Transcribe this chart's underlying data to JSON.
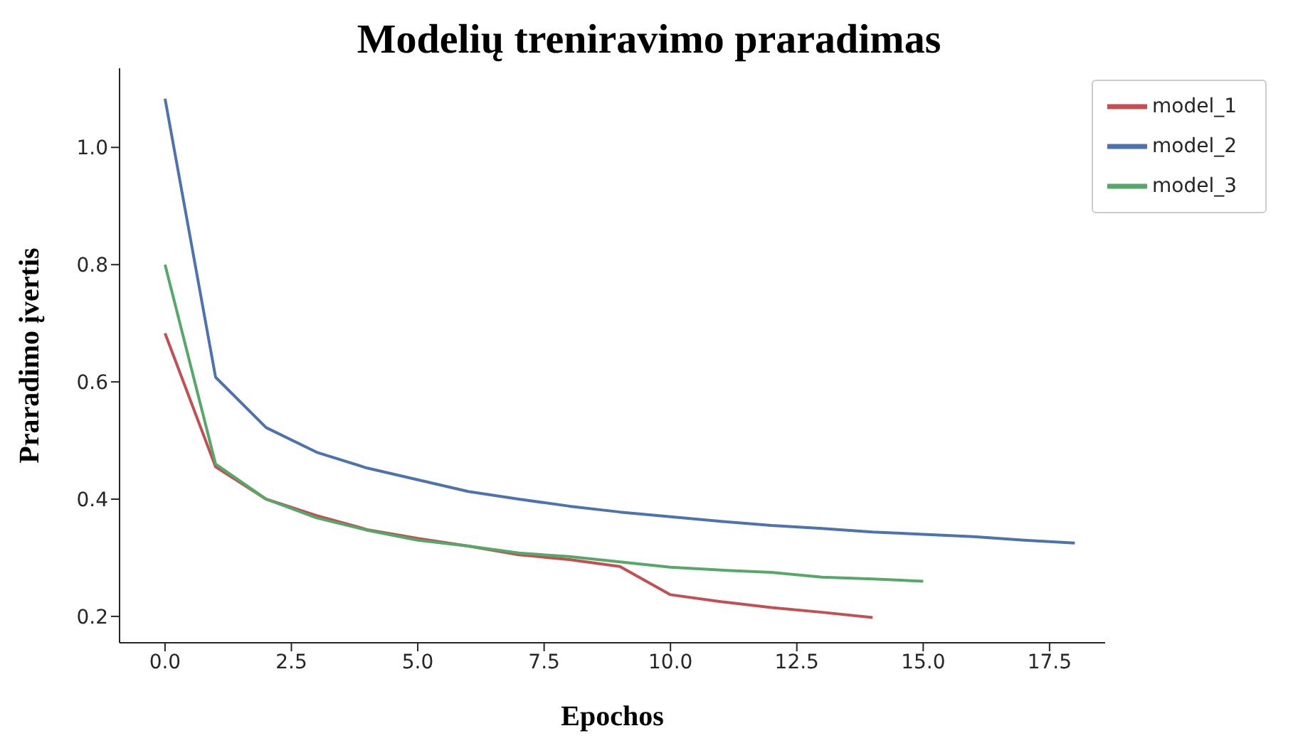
{
  "chart_data": {
    "type": "line",
    "title": "Modelių treniravimo praradimas",
    "xlabel": "Epochos",
    "ylabel": "Praradimo įvertis",
    "x": [
      0,
      1,
      2,
      3,
      4,
      5,
      6,
      7,
      8,
      9,
      10,
      11,
      12,
      13,
      14,
      15,
      16,
      17,
      18
    ],
    "series": [
      {
        "name": "model_1",
        "color": "#c44e52",
        "values": [
          0.683,
          0.455,
          0.4,
          0.372,
          0.348,
          0.333,
          0.32,
          0.305,
          0.297,
          0.285,
          0.237,
          0.225,
          0.215,
          0.207,
          0.198,
          null,
          null,
          null,
          null
        ]
      },
      {
        "name": "model_2",
        "color": "#4c72b0",
        "values": [
          1.083,
          0.608,
          0.522,
          0.48,
          0.453,
          0.433,
          0.413,
          0.4,
          0.388,
          0.378,
          0.37,
          0.362,
          0.355,
          0.35,
          0.344,
          0.34,
          0.336,
          0.33,
          0.325
        ]
      },
      {
        "name": "model_3",
        "color": "#55a868",
        "values": [
          0.8,
          0.46,
          0.4,
          0.368,
          0.347,
          0.33,
          0.32,
          0.308,
          0.302,
          0.293,
          0.284,
          0.279,
          0.275,
          0.267,
          0.264,
          0.26,
          null,
          null,
          null
        ]
      }
    ],
    "xlim": [
      -0.9,
      18.6
    ],
    "ylim": [
      0.155,
      1.135
    ],
    "xticks": [
      {
        "value": 0,
        "label": "0.0"
      },
      {
        "value": 2.5,
        "label": "2.5"
      },
      {
        "value": 5,
        "label": "5.0"
      },
      {
        "value": 7.5,
        "label": "7.5"
      },
      {
        "value": 10,
        "label": "10.0"
      },
      {
        "value": 12.5,
        "label": "12.5"
      },
      {
        "value": 15,
        "label": "15.0"
      },
      {
        "value": 17.5,
        "label": "17.5"
      }
    ],
    "yticks": [
      {
        "value": 0.2,
        "label": "0.2"
      },
      {
        "value": 0.4,
        "label": "0.4"
      },
      {
        "value": 0.6,
        "label": "0.6"
      },
      {
        "value": 0.8,
        "label": "0.8"
      },
      {
        "value": 1.0,
        "label": "1.0"
      }
    ],
    "grid": false,
    "legend": "top right",
    "marker": "none",
    "line_style": "solid"
  }
}
